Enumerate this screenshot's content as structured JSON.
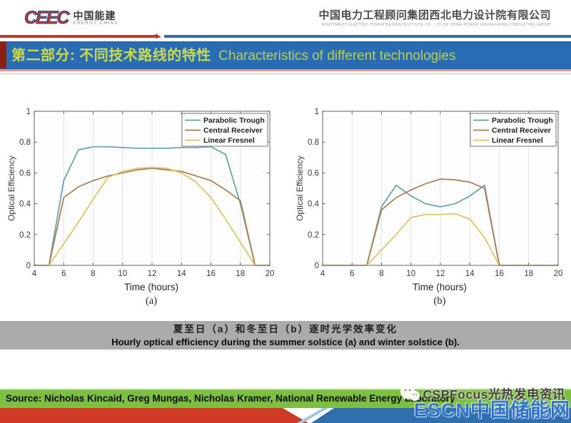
{
  "header": {
    "logo_mark": "CEEC",
    "logo_cn": "中国能建",
    "logo_en": "ENERGY CHINA",
    "company_cn": "中国电力工程顾问集团西北电力设计院有限公司",
    "company_en": "NORTHWEST ELECTRIC POWER DESIGN INSTITUTE CO., LTD OF CHINA POWER ENGINEERING CONSULTING GROUP"
  },
  "title": {
    "cn": "第二部分: 不同技术路线的特性",
    "en": "Characteristics of different technologies"
  },
  "caption": {
    "cn": "夏至日（a）和冬至日（b）逐时光学效率变化",
    "en": "Hourly optical efficiency during the summer solstice (a) and winter solstice (b)."
  },
  "footer": {
    "source": "Source: Nicholas Kincaid, Greg Mungas, Nicholas Kramer, National Renewable Energy Laboratory"
  },
  "watermarks": {
    "cspfocus": "CSPFocus光热发电资讯",
    "escn": "ESCN中国储能网"
  },
  "colors": {
    "title_bar_blue": "#2a6cb3",
    "title_text_green": "#c9da4d",
    "accent_red": "#c63927",
    "accent_blue": "#2f6fae",
    "source_bar_green": "#7cbf41",
    "caption_band_gray": "#ababab",
    "parabolic_trough": "#5fa3a8",
    "central_receiver": "#ab7c50",
    "linear_fresnel": "#d9c45f"
  },
  "chart_data": [
    {
      "type": "line",
      "sublabel": "(a)",
      "note": "summer solstice",
      "xlabel": "Time (hours)",
      "ylabel": "Optical Efficiency",
      "xlim": [
        4,
        20
      ],
      "ylim": [
        0,
        1
      ],
      "xticks": [
        4,
        6,
        8,
        10,
        12,
        14,
        16,
        18,
        20
      ],
      "xtick_labels": [
        "4",
        "6",
        "8",
        "10",
        "12",
        "14",
        "16",
        "18",
        "20"
      ],
      "yticks": [
        0,
        0.2,
        0.4,
        0.6,
        0.8,
        1
      ],
      "ytick_labels": [
        "0",
        "0.2",
        "0.4",
        "0.6",
        "0.8",
        "1"
      ],
      "grid": "vertical",
      "legend_position": "top-right",
      "colors": [
        "#5fa3a8",
        "#ab7c50",
        "#d9c45f"
      ],
      "x": [
        4,
        5,
        6,
        7,
        8,
        9,
        10,
        11,
        12,
        13,
        14,
        15,
        16,
        17,
        18,
        19,
        20
      ],
      "series": [
        {
          "name": "Parabolic Trough",
          "values": [
            0,
            0,
            0.55,
            0.75,
            0.77,
            0.77,
            0.765,
            0.76,
            0.76,
            0.76,
            0.765,
            0.765,
            0.77,
            0.72,
            0.4,
            0,
            0
          ]
        },
        {
          "name": "Central Receiver",
          "values": [
            0,
            0,
            0.44,
            0.51,
            0.55,
            0.58,
            0.6,
            0.62,
            0.63,
            0.62,
            0.61,
            0.58,
            0.55,
            0.49,
            0.42,
            0,
            0
          ]
        },
        {
          "name": "Linear Fresnel",
          "values": [
            0,
            0,
            0.14,
            0.28,
            0.43,
            0.57,
            0.61,
            0.63,
            0.635,
            0.63,
            0.6,
            0.54,
            0.44,
            0.3,
            0.15,
            0,
            0
          ]
        }
      ]
    },
    {
      "type": "line",
      "sublabel": "(b)",
      "note": "winter solstice",
      "xlabel": "Time (hours)",
      "ylabel": "Optical Efficiency",
      "xlim": [
        4,
        20
      ],
      "ylim": [
        0,
        1
      ],
      "xticks": [
        4,
        6,
        8,
        10,
        12,
        14,
        16,
        18,
        20
      ],
      "xtick_labels": [
        "4",
        "6",
        "8",
        "10",
        "12",
        "14",
        "16",
        "18",
        "20"
      ],
      "yticks": [
        0,
        0.2,
        0.4,
        0.6,
        0.8,
        1
      ],
      "ytick_labels": [
        "0",
        "0.2",
        "0.4",
        "0.6",
        "0.8",
        "1"
      ],
      "grid": "vertical",
      "legend_position": "top-right",
      "colors": [
        "#5fa3a8",
        "#ab7c50",
        "#d9c45f"
      ],
      "x": [
        4,
        5,
        6,
        7,
        8,
        9,
        10,
        11,
        12,
        13,
        14,
        15,
        16,
        17,
        18,
        19,
        20
      ],
      "series": [
        {
          "name": "Parabolic Trough",
          "values": [
            0,
            0,
            0,
            0,
            0.38,
            0.52,
            0.45,
            0.4,
            0.38,
            0.4,
            0.45,
            0.52,
            0,
            0,
            0,
            0,
            0
          ]
        },
        {
          "name": "Central Receiver",
          "values": [
            0,
            0,
            0,
            0,
            0.36,
            0.44,
            0.49,
            0.53,
            0.56,
            0.555,
            0.54,
            0.5,
            0,
            0,
            0,
            0,
            0
          ]
        },
        {
          "name": "Linear Fresnel",
          "values": [
            0,
            0,
            0,
            0,
            0.1,
            0.2,
            0.31,
            0.33,
            0.33,
            0.335,
            0.3,
            0.18,
            0,
            0,
            0,
            0,
            0
          ]
        }
      ]
    }
  ]
}
